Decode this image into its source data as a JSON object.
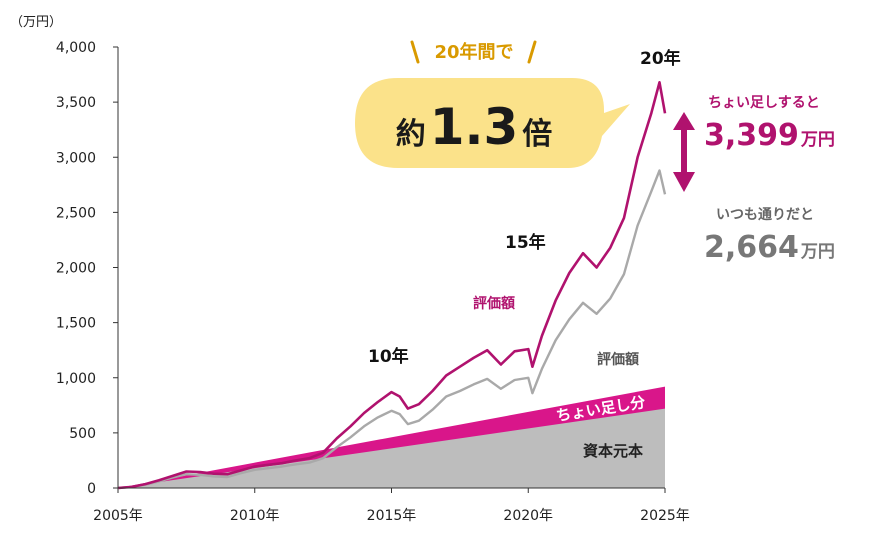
{
  "chart_data": {
    "type": "line",
    "y_unit": "（万円）",
    "x_ticks": [
      "2005年",
      "2010年",
      "2015年",
      "2020年",
      "2025年"
    ],
    "y_ticks": [
      "0",
      "500",
      "1,000",
      "1,500",
      "2,000",
      "2,500",
      "3,000",
      "3,500",
      "4,000"
    ],
    "ylim": [
      0,
      4000
    ],
    "xlim": [
      2005,
      2025
    ],
    "series": [
      {
        "name": "評価額",
        "color": "#b0126e",
        "points": [
          [
            2005,
            0
          ],
          [
            2005.5,
            10
          ],
          [
            2006,
            35
          ],
          [
            2006.5,
            70
          ],
          [
            2007,
            110
          ],
          [
            2007.5,
            150
          ],
          [
            2008,
            145
          ],
          [
            2008.5,
            130
          ],
          [
            2009,
            125
          ],
          [
            2009.5,
            160
          ],
          [
            2010,
            195
          ],
          [
            2010.5,
            210
          ],
          [
            2011,
            225
          ],
          [
            2011.5,
            250
          ],
          [
            2012,
            270
          ],
          [
            2012.5,
            320
          ],
          [
            2013,
            450
          ],
          [
            2013.5,
            560
          ],
          [
            2014,
            680
          ],
          [
            2014.5,
            780
          ],
          [
            2015,
            870
          ],
          [
            2015.3,
            830
          ],
          [
            2015.6,
            720
          ],
          [
            2016,
            760
          ],
          [
            2016.5,
            880
          ],
          [
            2017,
            1020
          ],
          [
            2017.5,
            1100
          ],
          [
            2018,
            1180
          ],
          [
            2018.5,
            1250
          ],
          [
            2019,
            1120
          ],
          [
            2019.5,
            1240
          ],
          [
            2020,
            1260
          ],
          [
            2020.15,
            1100
          ],
          [
            2020.5,
            1380
          ],
          [
            2021,
            1700
          ],
          [
            2021.5,
            1950
          ],
          [
            2022,
            2130
          ],
          [
            2022.5,
            2000
          ],
          [
            2023,
            2180
          ],
          [
            2023.5,
            2450
          ],
          [
            2024,
            3000
          ],
          [
            2024.5,
            3400
          ],
          [
            2024.8,
            3680
          ],
          [
            2025,
            3399
          ]
        ]
      },
      {
        "name": "評価額",
        "color": "#a9a9a9",
        "points": [
          [
            2005,
            0
          ],
          [
            2005.5,
            10
          ],
          [
            2006,
            30
          ],
          [
            2006.5,
            60
          ],
          [
            2007,
            95
          ],
          [
            2007.5,
            125
          ],
          [
            2008,
            120
          ],
          [
            2008.5,
            105
          ],
          [
            2009,
            100
          ],
          [
            2009.5,
            135
          ],
          [
            2010,
            165
          ],
          [
            2010.5,
            180
          ],
          [
            2011,
            195
          ],
          [
            2011.5,
            215
          ],
          [
            2012,
            230
          ],
          [
            2012.5,
            270
          ],
          [
            2013,
            370
          ],
          [
            2013.5,
            460
          ],
          [
            2014,
            560
          ],
          [
            2014.5,
            640
          ],
          [
            2015,
            700
          ],
          [
            2015.3,
            670
          ],
          [
            2015.6,
            580
          ],
          [
            2016,
            610
          ],
          [
            2016.5,
            710
          ],
          [
            2017,
            830
          ],
          [
            2017.5,
            880
          ],
          [
            2018,
            940
          ],
          [
            2018.5,
            990
          ],
          [
            2019,
            900
          ],
          [
            2019.5,
            980
          ],
          [
            2020,
            1000
          ],
          [
            2020.15,
            860
          ],
          [
            2020.5,
            1080
          ],
          [
            2021,
            1340
          ],
          [
            2021.5,
            1530
          ],
          [
            2022,
            1680
          ],
          [
            2022.5,
            1580
          ],
          [
            2023,
            1720
          ],
          [
            2023.5,
            1940
          ],
          [
            2024,
            2380
          ],
          [
            2024.5,
            2690
          ],
          [
            2024.8,
            2880
          ],
          [
            2025,
            2664
          ]
        ]
      }
    ],
    "area_bands": [
      {
        "name": "資本元本",
        "color": "#bdbdbd",
        "start": 0,
        "end": 720
      },
      {
        "name": "ちょい足し分",
        "color": "#d9168a",
        "start_top": 0,
        "end_top": 920
      }
    ],
    "annotations": {
      "y10": "10年",
      "y15": "15年",
      "y20": "20年",
      "val_label_m": "評価額",
      "val_label_g": "評価額",
      "band_label": "ちょい足し分",
      "base_label": "資本元本"
    }
  },
  "bubble": {
    "top_text": "20年間で",
    "prefix": "約",
    "value": "1.3",
    "suffix": "倍",
    "color": "#fbe28a"
  },
  "right_panel": {
    "m_head": "ちょい足しすると",
    "m_value": "3,399",
    "m_unit": "万円",
    "g_head": "いつも通りだと",
    "g_value": "2,664",
    "g_unit": "万円",
    "arrow_color": "#b0126e"
  }
}
